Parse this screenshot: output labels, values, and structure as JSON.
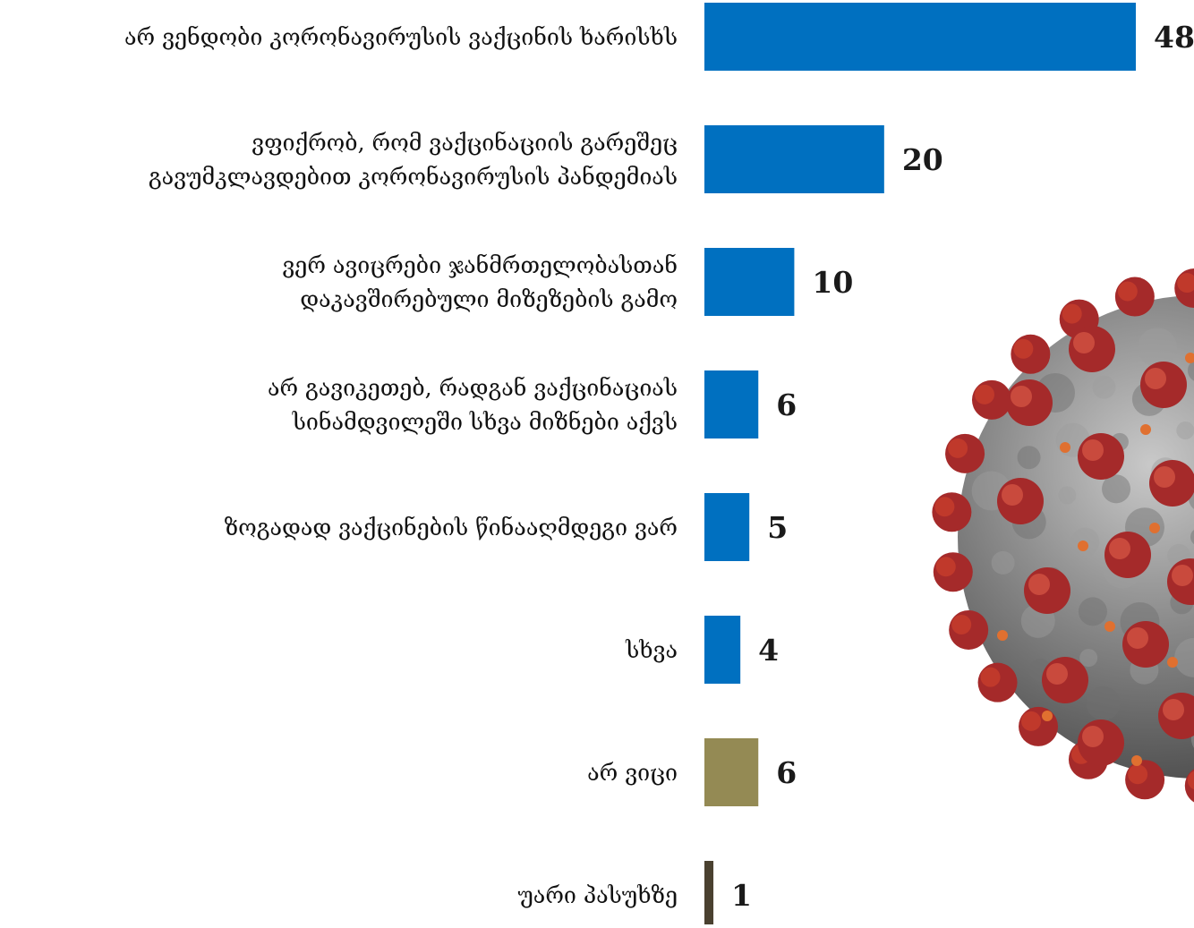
{
  "chart_data": {
    "type": "bar",
    "orientation": "horizontal",
    "categories": [
      [
        "არ ვენდობი კორონავირუსის ვაქცინის ხარისხს"
      ],
      [
        "ვფიქრობ, რომ ვაქცინაციის გარეშეც",
        "გავუმკლავდებით კორონავირუსის პანდემიას"
      ],
      [
        "ვერ ავიცრები ჯანმრთელობასთან",
        "დაკავშირებული მიზეზების გამო"
      ],
      [
        "არ გავიკეთებ, რადგან ვაქცინაციას",
        "სინამდვილეში სხვა მიზნები აქვს"
      ],
      [
        "ზოგადად ვაქცინების წინააღმდეგი ვარ"
      ],
      [
        "სხვა"
      ],
      [
        "არ ვიცი"
      ],
      [
        "უარი პასუხზე"
      ]
    ],
    "values": [
      48,
      20,
      10,
      6,
      5,
      4,
      6,
      1
    ],
    "value_labels": [
      "48",
      "20",
      "10",
      "6",
      "5",
      "4",
      "6",
      "1"
    ],
    "bar_colors": [
      "#0070c0",
      "#0070c0",
      "#0070c0",
      "#0070c0",
      "#0070c0",
      "#0070c0",
      "#948a54",
      "#4a4130"
    ],
    "xlim": [
      0,
      48
    ],
    "grid": false,
    "legend": "none"
  },
  "decoration": {
    "image": "coronavirus-illustration",
    "colors": {
      "spike": "#a52a2a",
      "body": "#8a8a8a",
      "accent": "#e07030"
    }
  }
}
